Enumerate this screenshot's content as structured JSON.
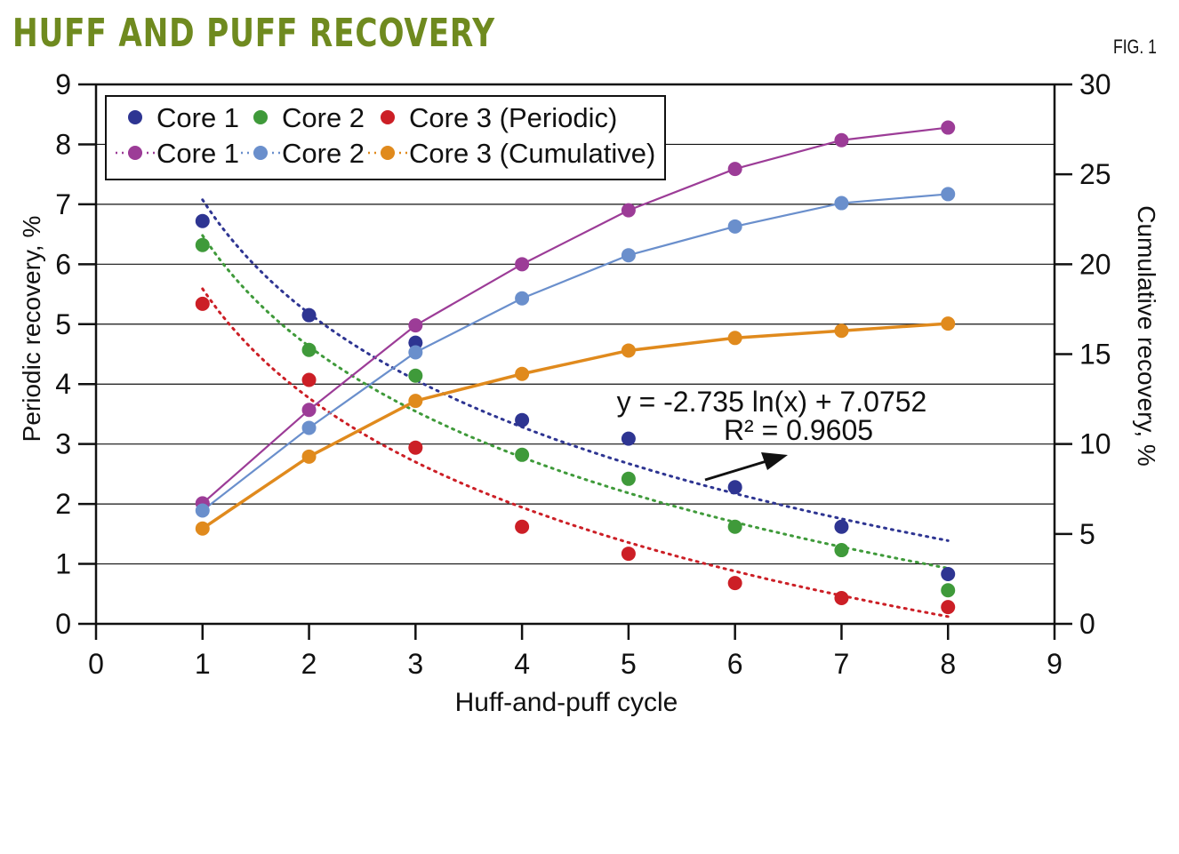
{
  "header": {
    "title": "HUFF AND PUFF RECOVERY",
    "figure_label": "FIG. 1"
  },
  "chart_data": {
    "type": "scatter",
    "xlabel": "Huff-and-puff cycle",
    "ylabel": "Periodic recovery, %",
    "y2label": "Cumulative recovery, %",
    "xlim": [
      0,
      9
    ],
    "ylim": [
      0,
      9
    ],
    "y2lim": [
      0,
      30
    ],
    "xticks": [
      0,
      1,
      2,
      3,
      4,
      5,
      6,
      7,
      8,
      9
    ],
    "yticks": [
      0,
      1,
      2,
      3,
      4,
      5,
      6,
      7,
      8,
      9
    ],
    "y2ticks": [
      0,
      5,
      10,
      15,
      20,
      25,
      30
    ],
    "grid": "horizontal",
    "legend_position": "top-left",
    "x": [
      1,
      2,
      3,
      4,
      5,
      6,
      7,
      8
    ],
    "series": [
      {
        "name": "Core 1",
        "group": "Periodic",
        "axis": "left",
        "style": "points",
        "color": "#2e3592",
        "values": [
          6.72,
          5.15,
          4.69,
          3.4,
          3.09,
          2.28,
          1.62,
          0.83
        ],
        "trend": {
          "type": "log",
          "a": -2.735,
          "b": 7.0752
        }
      },
      {
        "name": "Core 2",
        "group": "Periodic",
        "axis": "left",
        "style": "points",
        "color": "#3f9a3a",
        "values": [
          6.32,
          4.57,
          4.14,
          2.82,
          2.42,
          1.62,
          1.23,
          0.56
        ],
        "trend": {
          "type": "log",
          "a": -2.67,
          "b": 6.48
        }
      },
      {
        "name": "Core 3 (Periodic)",
        "group": "Periodic",
        "axis": "left",
        "style": "points",
        "color": "#cc1f26",
        "values": [
          5.34,
          4.07,
          2.94,
          1.62,
          1.17,
          0.68,
          0.43,
          0.28
        ],
        "trend": {
          "type": "log",
          "a": -2.63,
          "b": 5.59
        }
      },
      {
        "name": "Core 1",
        "group": "Cumulative",
        "axis": "right",
        "style": "line",
        "color": "#9c3c97",
        "values": [
          6.7,
          11.9,
          16.6,
          20.0,
          23.0,
          25.3,
          26.9,
          27.6
        ]
      },
      {
        "name": "Core 2",
        "group": "Cumulative",
        "axis": "right",
        "style": "line",
        "color": "#6a8fcc",
        "values": [
          6.3,
          10.9,
          15.1,
          18.1,
          20.5,
          22.1,
          23.4,
          23.9
        ]
      },
      {
        "name": "Core 3 (Cumulative)",
        "group": "Cumulative",
        "axis": "right",
        "style": "line",
        "color": "#e08a1d",
        "values": [
          5.3,
          9.3,
          12.4,
          13.9,
          15.2,
          15.9,
          16.3,
          16.7
        ]
      }
    ],
    "annotations": {
      "equation": "y = -2.735 ln(x) + 7.0752",
      "r_squared": "R² = 0.9605",
      "arrow": "points to Core 1 trendline"
    }
  }
}
